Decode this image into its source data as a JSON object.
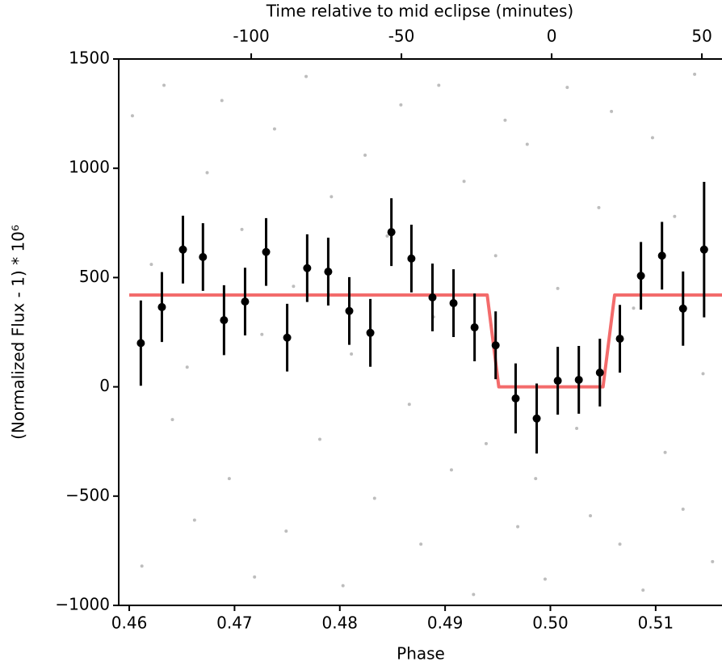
{
  "chart_data": {
    "type": "scatter",
    "xlabel": "Phase",
    "ylabel": "(Normalized Flux - 1) * 10⁶",
    "x2label": "Time relative to mid eclipse (minutes)",
    "xlim": [
      0.459,
      0.5163
    ],
    "ylim": [
      -1000,
      1500
    ],
    "x2lim": [
      -144.1,
      56.7
    ],
    "xticks": [
      0.46,
      0.47,
      0.48,
      0.49,
      {
        "value": 0.5,
        "label": "0.50"
      },
      0.51
    ],
    "yticks": [
      {
        "value": -1000,
        "label": "−1000"
      },
      {
        "value": -500,
        "label": "−500"
      },
      0,
      500,
      1000,
      1500
    ],
    "x2ticks": [
      {
        "value": -100,
        "label": "-100"
      },
      {
        "value": -50,
        "label": "-50"
      },
      0,
      50
    ],
    "raw": {
      "color": "#bdbdbd",
      "x": [
        0.4603,
        0.4612,
        0.4621,
        0.4633,
        0.4641,
        0.4655,
        0.4662,
        0.4674,
        0.4688,
        0.4695,
        0.4707,
        0.4719,
        0.4726,
        0.4738,
        0.4749,
        0.4756,
        0.4768,
        0.4781,
        0.4792,
        0.4803,
        0.4811,
        0.4824,
        0.4833,
        0.4845,
        0.4858,
        0.4866,
        0.4877,
        0.4889,
        0.4894,
        0.4906,
        0.4918,
        0.4927,
        0.4939,
        0.4948,
        0.4957,
        0.4969,
        0.4978,
        0.4986,
        0.4995,
        0.5007,
        0.5016,
        0.5025,
        0.5038,
        0.5046,
        0.5058,
        0.5066,
        0.5079,
        0.5088,
        0.5097,
        0.5109,
        0.5118,
        0.5126,
        0.5137,
        0.5145,
        0.5154
      ],
      "y": [
        1240,
        -820,
        560,
        1380,
        -150,
        90,
        -610,
        980,
        1310,
        -420,
        720,
        -870,
        240,
        1180,
        -660,
        460,
        1420,
        -240,
        870,
        -910,
        150,
        1060,
        -510,
        690,
        1290,
        -80,
        -720,
        320,
        1380,
        -380,
        940,
        -950,
        -260,
        600,
        1220,
        -640,
        1110,
        -420,
        -880,
        450,
        1370,
        -190,
        -590,
        820,
        1260,
        -720,
        360,
        -930,
        1140,
        -300,
        780,
        -560,
        1430,
        60,
        -800
      ]
    },
    "binned": {
      "color": "#000000",
      "x": [
        0.4611,
        0.4631,
        0.4651,
        0.467,
        0.469,
        0.471,
        0.473,
        0.475,
        0.4769,
        0.4789,
        0.4809,
        0.4829,
        0.4849,
        0.4868,
        0.4888,
        0.4908,
        0.4928,
        0.4948,
        0.4967,
        0.4987,
        0.5007,
        0.5027,
        0.5047,
        0.5066,
        0.5086,
        0.5106,
        0.5126,
        0.5146
      ],
      "y": [
        200,
        365,
        628,
        594,
        305,
        390,
        617,
        225,
        543,
        527,
        347,
        247,
        708,
        587,
        409,
        383,
        272,
        190,
        -53,
        -145,
        28,
        32,
        65,
        220,
        508,
        600,
        358,
        628
      ],
      "yerr": [
        195,
        160,
        155,
        155,
        160,
        155,
        155,
        155,
        155,
        155,
        155,
        155,
        155,
        155,
        155,
        155,
        155,
        155,
        160,
        160,
        155,
        155,
        155,
        155,
        155,
        155,
        170,
        310
      ]
    },
    "model": {
      "color": "#f36b6b",
      "x": [
        0.46,
        0.494,
        0.4951,
        0.505,
        0.5061,
        0.5163
      ],
      "y": [
        420,
        420,
        0,
        0,
        420,
        420
      ]
    }
  }
}
